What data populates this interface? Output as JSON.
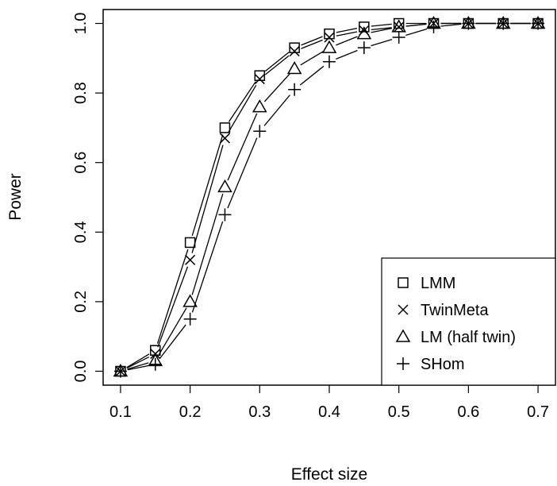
{
  "chart_data": {
    "type": "line",
    "title": "",
    "xlabel": "Effect size",
    "ylabel": "Power",
    "xlim": [
      0.075,
      0.725
    ],
    "ylim": [
      -0.04,
      1.04
    ],
    "x_ticks": [
      "0.1",
      "0.2",
      "0.3",
      "0.4",
      "0.5",
      "0.6",
      "0.7"
    ],
    "y_ticks": [
      "0.0",
      "0.2",
      "0.4",
      "0.6",
      "0.8",
      "1.0"
    ],
    "grid": false,
    "legend_position": "bottom-right",
    "x": [
      0.1,
      0.15,
      0.2,
      0.25,
      0.3,
      0.35,
      0.4,
      0.45,
      0.5,
      0.55,
      0.6,
      0.65,
      0.7
    ],
    "series": [
      {
        "name": "LMM",
        "marker": "square",
        "values": [
          0.0,
          0.06,
          0.37,
          0.7,
          0.85,
          0.93,
          0.97,
          0.99,
          1.0,
          1.0,
          1.0,
          1.0,
          1.0
        ]
      },
      {
        "name": "TwinMeta",
        "marker": "x",
        "values": [
          0.0,
          0.05,
          0.32,
          0.67,
          0.84,
          0.92,
          0.96,
          0.98,
          0.99,
          1.0,
          1.0,
          1.0,
          1.0
        ]
      },
      {
        "name": "LM (half twin)",
        "marker": "triangle",
        "values": [
          0.0,
          0.03,
          0.2,
          0.53,
          0.76,
          0.87,
          0.93,
          0.97,
          0.99,
          1.0,
          1.0,
          1.0,
          1.0
        ]
      },
      {
        "name": "SHom",
        "marker": "plus",
        "values": [
          0.0,
          0.02,
          0.15,
          0.45,
          0.69,
          0.81,
          0.89,
          0.93,
          0.96,
          0.99,
          1.0,
          1.0,
          1.0
        ]
      }
    ]
  }
}
